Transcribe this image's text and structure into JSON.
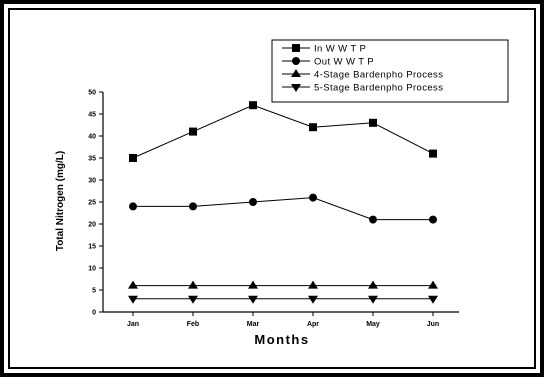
{
  "chart_data": {
    "type": "line",
    "categories": [
      "Jan",
      "Feb",
      "Mar",
      "Apr",
      "May",
      "Jun"
    ],
    "series": [
      {
        "name": "In W W T P",
        "marker": "square",
        "values": [
          35,
          41,
          47,
          42,
          43,
          36
        ]
      },
      {
        "name": "Out W W T P",
        "marker": "circle",
        "values": [
          24,
          24,
          25,
          26,
          21,
          21
        ]
      },
      {
        "name": "4-Stage Bardenpho Process",
        "marker": "triangle-up",
        "values": [
          6,
          6,
          6,
          6,
          6,
          6
        ]
      },
      {
        "name": "5-Stage Bardenpho Process",
        "marker": "triangle-down",
        "values": [
          3,
          3,
          3,
          3,
          3,
          3
        ]
      }
    ],
    "xlabel": "Months",
    "ylabel": "Total Nitrogen (mg/L)",
    "ylim": [
      0,
      50
    ],
    "yticks": [
      0,
      5,
      10,
      15,
      20,
      25,
      30,
      35,
      40,
      45,
      50
    ],
    "grid": false,
    "legend_position": "top-right",
    "color": "#000000"
  }
}
